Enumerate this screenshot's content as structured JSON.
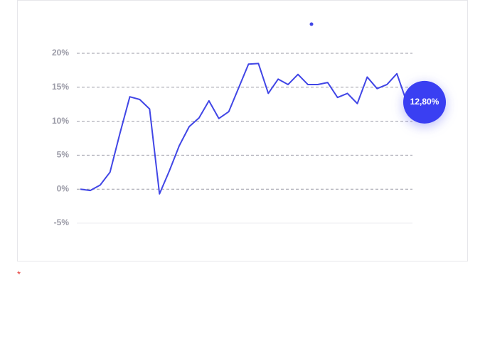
{
  "chart_data": {
    "type": "line",
    "categories": [
      null,
      null,
      null,
      null,
      null,
      null,
      null,
      null,
      null,
      null,
      null,
      null,
      null,
      null,
      null,
      null,
      null,
      null,
      null,
      null,
      null,
      null,
      null,
      null,
      null,
      null,
      null,
      null,
      null,
      null,
      null,
      null,
      null,
      null
    ],
    "series": [
      {
        "color": "#4146e6",
        "values": [
          0,
          -0.2,
          0.6,
          2.5,
          8.2,
          13.6,
          13.2,
          11.8,
          -0.7,
          2.7,
          6.4,
          9.2,
          10.5,
          13.0,
          10.4,
          11.4,
          14.9,
          18.4,
          18.5,
          14.1,
          16.2,
          15.4,
          16.9,
          15.4,
          15.4,
          15.7,
          13.5,
          14.1,
          12.6,
          16.5,
          14.8,
          15.4,
          17.0,
          12.8
        ],
        "value_labels": [
          null,
          null,
          null,
          null,
          null,
          null,
          null,
          null,
          null,
          null,
          null,
          null,
          null,
          null,
          null,
          null,
          null,
          null,
          null,
          null,
          null,
          null,
          null,
          null,
          null,
          null,
          null,
          null,
          null,
          null,
          null,
          null,
          null,
          "12,80%"
        ]
      }
    ],
    "ylim": [
      -5,
      20
    ],
    "yticks": [
      {
        "value": -5,
        "label": "-5%"
      },
      {
        "value": 0,
        "label": "0%"
      },
      {
        "value": 5,
        "label": "5%"
      },
      {
        "value": 10,
        "label": "10%"
      },
      {
        "value": 15,
        "label": "15%"
      },
      {
        "value": 20,
        "label": "20%"
      }
    ],
    "grid": true
  },
  "footnote": "*"
}
